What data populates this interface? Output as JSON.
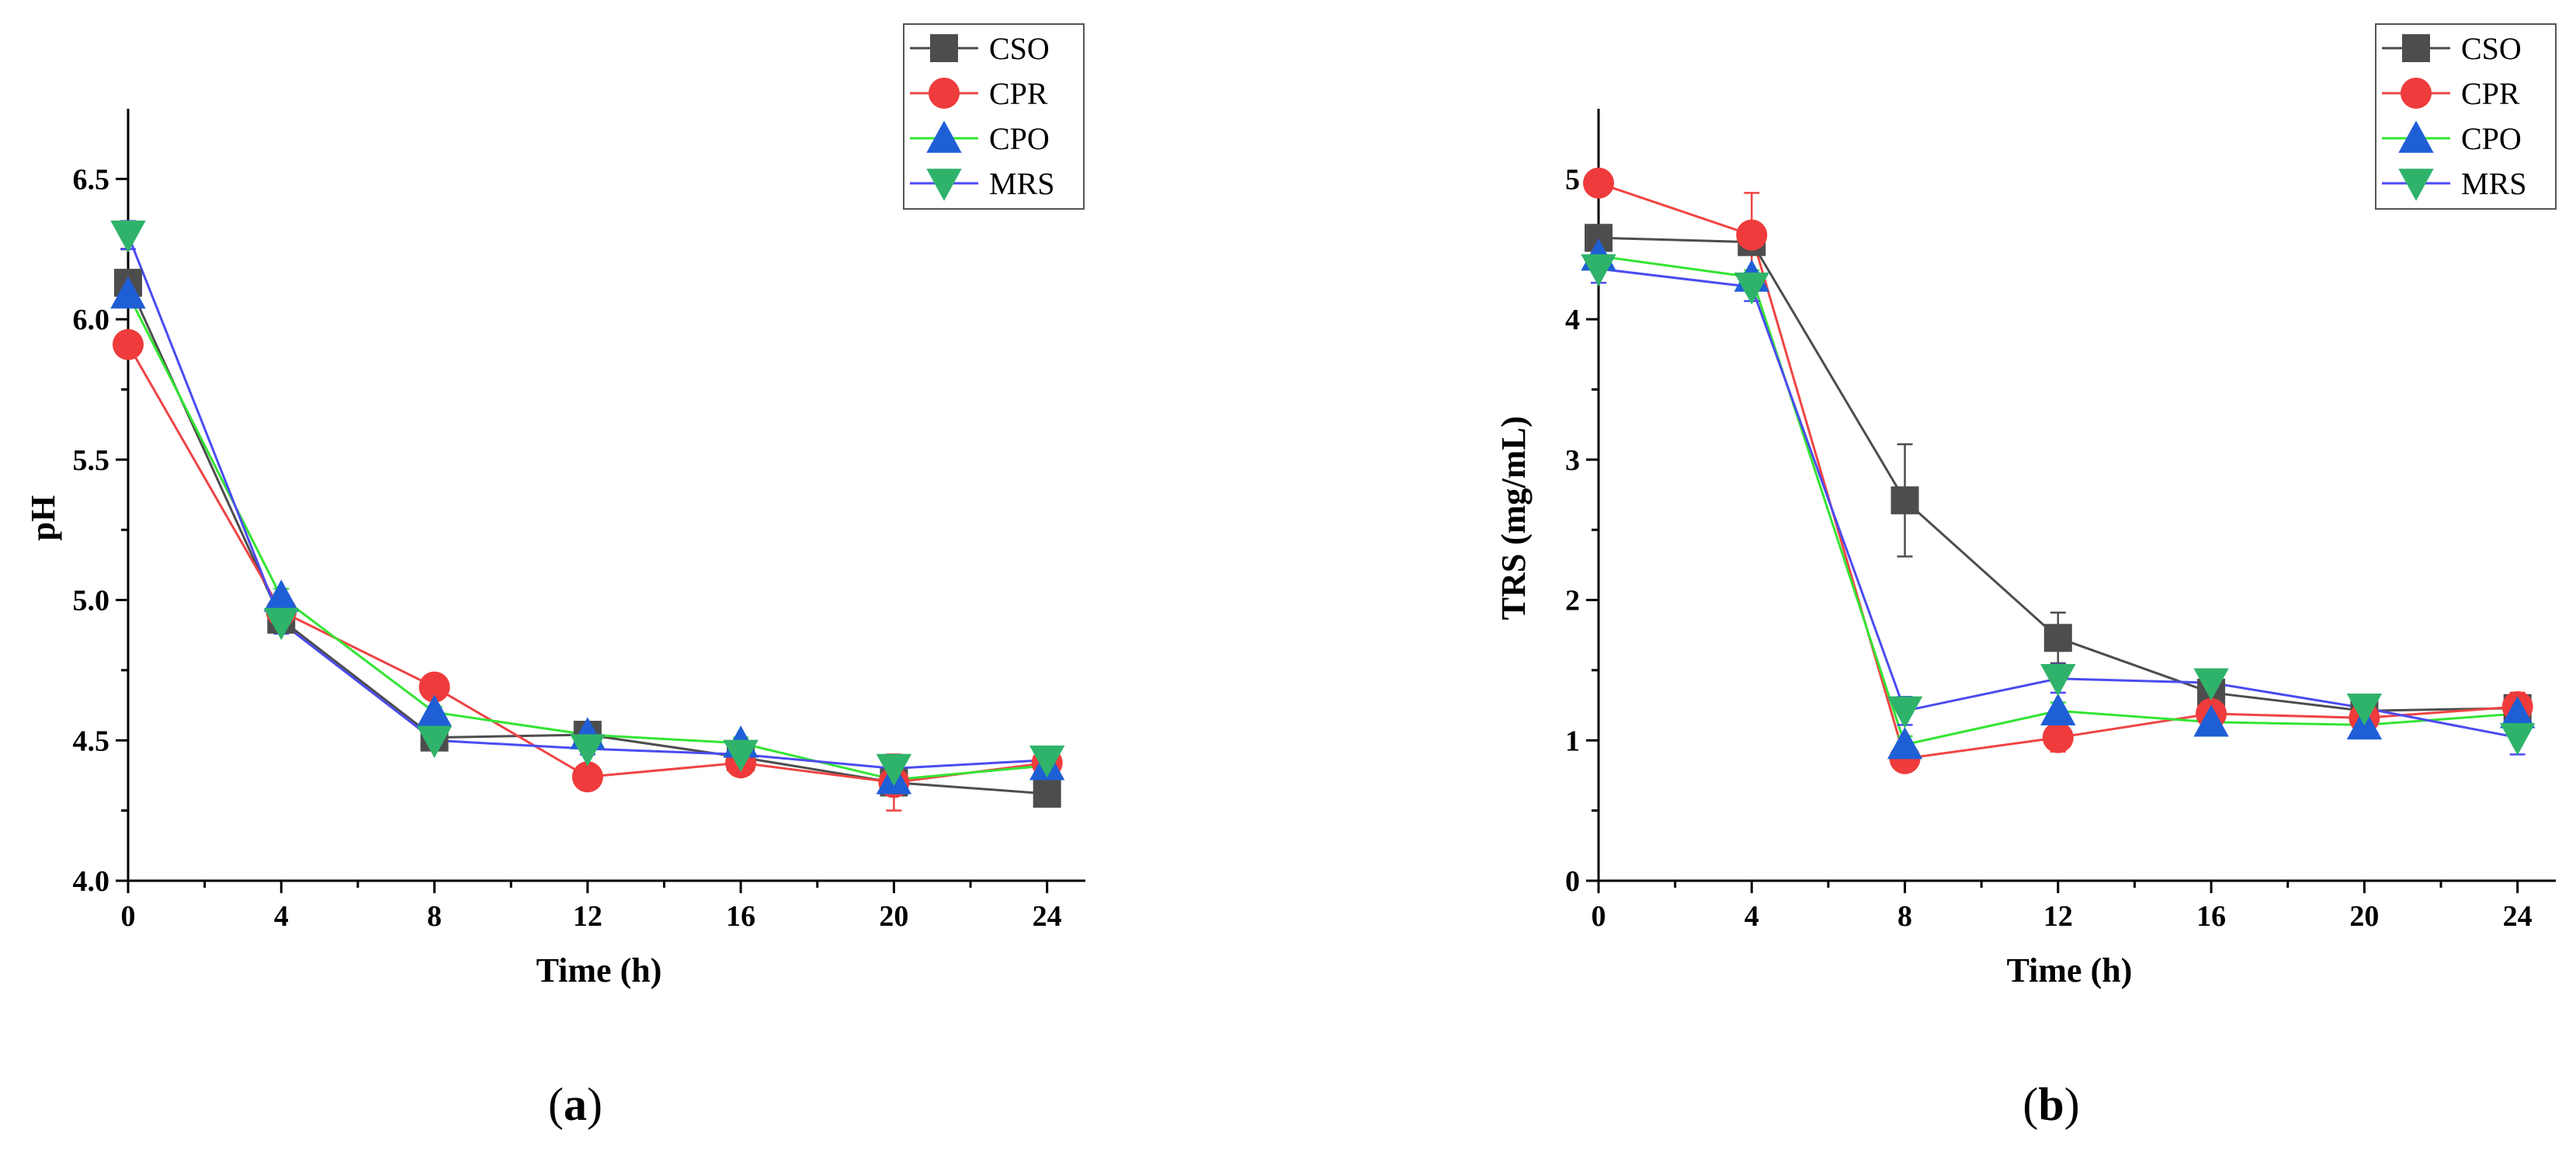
{
  "chart_data": [
    {
      "type": "line",
      "panel_label": "a",
      "title": "",
      "xlabel": "Time (h)",
      "ylabel": "pH",
      "xlim": [
        0,
        25
      ],
      "ylim": [
        4.0,
        6.75
      ],
      "x_ticks": [
        0,
        4,
        8,
        12,
        16,
        20,
        24
      ],
      "x_minor_ticks": [
        2,
        6,
        10,
        14,
        18,
        22
      ],
      "y_ticks": [
        4.0,
        4.5,
        5.0,
        5.5,
        6.0,
        6.5
      ],
      "y_tick_labels": [
        "4.0",
        "4.5",
        "5.0",
        "5.5",
        "6.0",
        "6.5"
      ],
      "y_minor_ticks": [
        4.25,
        4.75,
        5.25,
        5.75,
        6.25
      ],
      "legend_position": "top-right",
      "grid": false,
      "x": [
        0,
        4,
        8,
        12,
        16,
        20,
        24
      ],
      "series": [
        {
          "name": "CSO",
          "marker": "square",
          "line_color": "#4d4d4d",
          "marker_color": "#4d4d4d",
          "values": [
            6.13,
            4.93,
            4.51,
            4.52,
            4.44,
            4.35,
            4.31
          ],
          "errors": [
            0.02,
            0.02,
            0.02,
            0.02,
            0.02,
            0.02,
            0.0
          ]
        },
        {
          "name": "CPR",
          "marker": "circle",
          "line_color": "#ef4444",
          "marker_color": "#ef3b3b",
          "values": [
            5.91,
            4.96,
            4.69,
            4.37,
            4.42,
            4.35,
            4.42
          ],
          "errors": [
            0.02,
            0.03,
            0.04,
            0.03,
            0.04,
            0.1,
            0.02
          ]
        },
        {
          "name": "CPO",
          "marker": "triangle-up",
          "line_color": "#33e433",
          "marker_color": "#1f5fd6",
          "values": [
            6.09,
            5.01,
            4.6,
            4.52,
            4.49,
            4.36,
            4.41
          ],
          "errors": [
            0.02,
            0.03,
            0.02,
            0.02,
            0.02,
            0.02,
            0.02
          ]
        },
        {
          "name": "MRS",
          "marker": "triangle-down",
          "line_color": "#4b4bf0",
          "marker_color": "#2fb36a",
          "values": [
            6.3,
            4.92,
            4.5,
            4.47,
            4.45,
            4.4,
            4.43
          ],
          "errors": [
            0.05,
            0.04,
            0.03,
            0.02,
            0.02,
            0.03,
            0.02
          ]
        }
      ]
    },
    {
      "type": "line",
      "panel_label": "b",
      "title": "",
      "xlabel": "Time (h)",
      "ylabel": "TRS (mg/mL)",
      "xlim": [
        0,
        25
      ],
      "ylim": [
        0,
        5.5
      ],
      "x_ticks": [
        0,
        4,
        8,
        12,
        16,
        20,
        24
      ],
      "x_minor_ticks": [
        2,
        6,
        10,
        14,
        18,
        22
      ],
      "y_ticks": [
        0,
        1,
        2,
        3,
        4,
        5
      ],
      "y_tick_labels": [
        "0",
        "1",
        "2",
        "3",
        "4",
        "5"
      ],
      "y_minor_ticks": [
        0.5,
        1.5,
        2.5,
        3.5,
        4.5
      ],
      "legend_position": "top-right",
      "grid": false,
      "x": [
        0,
        4,
        8,
        12,
        16,
        20,
        24
      ],
      "series": [
        {
          "name": "CSO",
          "marker": "square",
          "line_color": "#4d4d4d",
          "marker_color": "#4d4d4d",
          "values": [
            4.58,
            4.55,
            2.71,
            1.73,
            1.34,
            1.21,
            1.23
          ],
          "errors": [
            0.08,
            0.05,
            0.4,
            0.18,
            0.05,
            0.04,
            0.05
          ]
        },
        {
          "name": "CPR",
          "marker": "circle",
          "line_color": "#ef4444",
          "marker_color": "#ef3b3b",
          "values": [
            4.97,
            4.6,
            0.87,
            1.02,
            1.19,
            1.16,
            1.24
          ],
          "errors": [
            0.03,
            0.3,
            0.05,
            0.1,
            0.05,
            0.05,
            0.1
          ]
        },
        {
          "name": "CPO",
          "marker": "triangle-up",
          "line_color": "#33e433",
          "marker_color": "#1f5fd6",
          "values": [
            4.45,
            4.3,
            0.97,
            1.21,
            1.13,
            1.11,
            1.19
          ],
          "errors": [
            0.08,
            0.05,
            0.06,
            0.06,
            0.04,
            0.04,
            0.05
          ]
        },
        {
          "name": "MRS",
          "marker": "triangle-down",
          "line_color": "#4b4bf0",
          "marker_color": "#2fb36a",
          "values": [
            4.36,
            4.23,
            1.21,
            1.44,
            1.41,
            1.23,
            1.02
          ],
          "errors": [
            0.1,
            0.1,
            0.1,
            0.1,
            0.05,
            0.05,
            0.12
          ]
        }
      ]
    }
  ]
}
